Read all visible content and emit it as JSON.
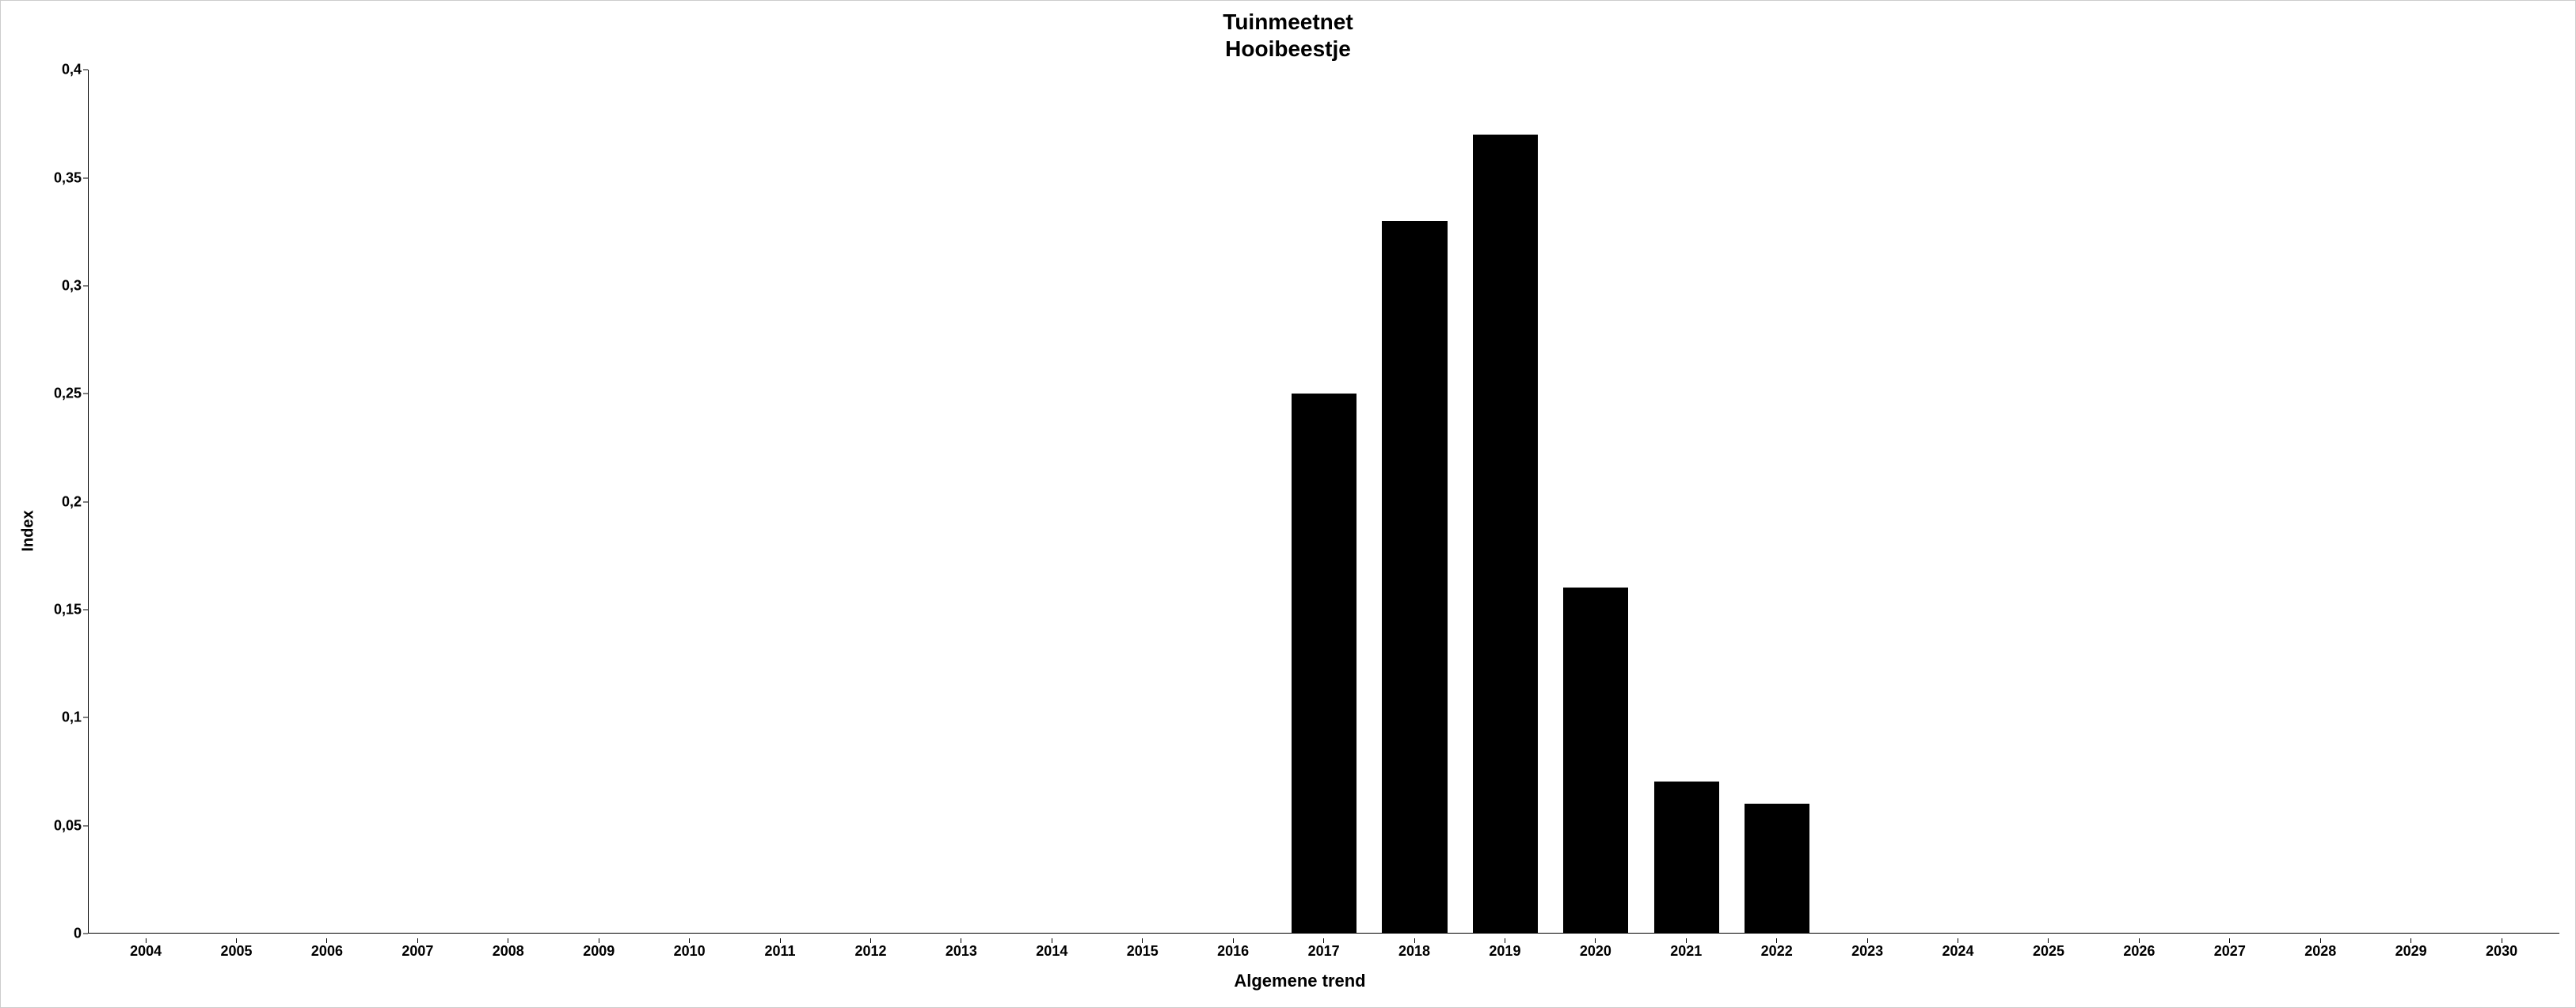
{
  "chart": {
    "type": "bar",
    "title_line1": "Tuinmeetnet",
    "title_line2": "Hooibeestje",
    "title_fontsize": 28,
    "ylabel": "Index",
    "xlabel": "Algemene trend",
    "label_fontsize": 20,
    "tick_fontsize": 18,
    "categories": [
      "2004",
      "2005",
      "2006",
      "2007",
      "2008",
      "2009",
      "2010",
      "2011",
      "2012",
      "2013",
      "2014",
      "2015",
      "2016",
      "2017",
      "2018",
      "2019",
      "2020",
      "2021",
      "2022",
      "2023",
      "2024",
      "2025",
      "2026",
      "2027",
      "2028",
      "2029",
      "2030"
    ],
    "values": [
      0,
      0,
      0,
      0,
      0,
      0,
      0,
      0,
      0,
      0,
      0,
      0,
      0,
      0.25,
      0.33,
      0.37,
      0.16,
      0.07,
      0.06,
      0,
      0,
      0,
      0,
      0,
      0,
      0,
      0
    ],
    "ylim": [
      0,
      0.4
    ],
    "ytick_step": 0.05,
    "yticks": [
      "0",
      "0,05",
      "0,1",
      "0,15",
      "0,2",
      "0,25",
      "0,3",
      "0,35",
      "0,4"
    ],
    "bar_color": "#000000",
    "bar_width": 0.72,
    "background_color": "#ffffff",
    "axis_color": "#000000",
    "border_color": "#cccccc",
    "font_family": "Arial"
  }
}
